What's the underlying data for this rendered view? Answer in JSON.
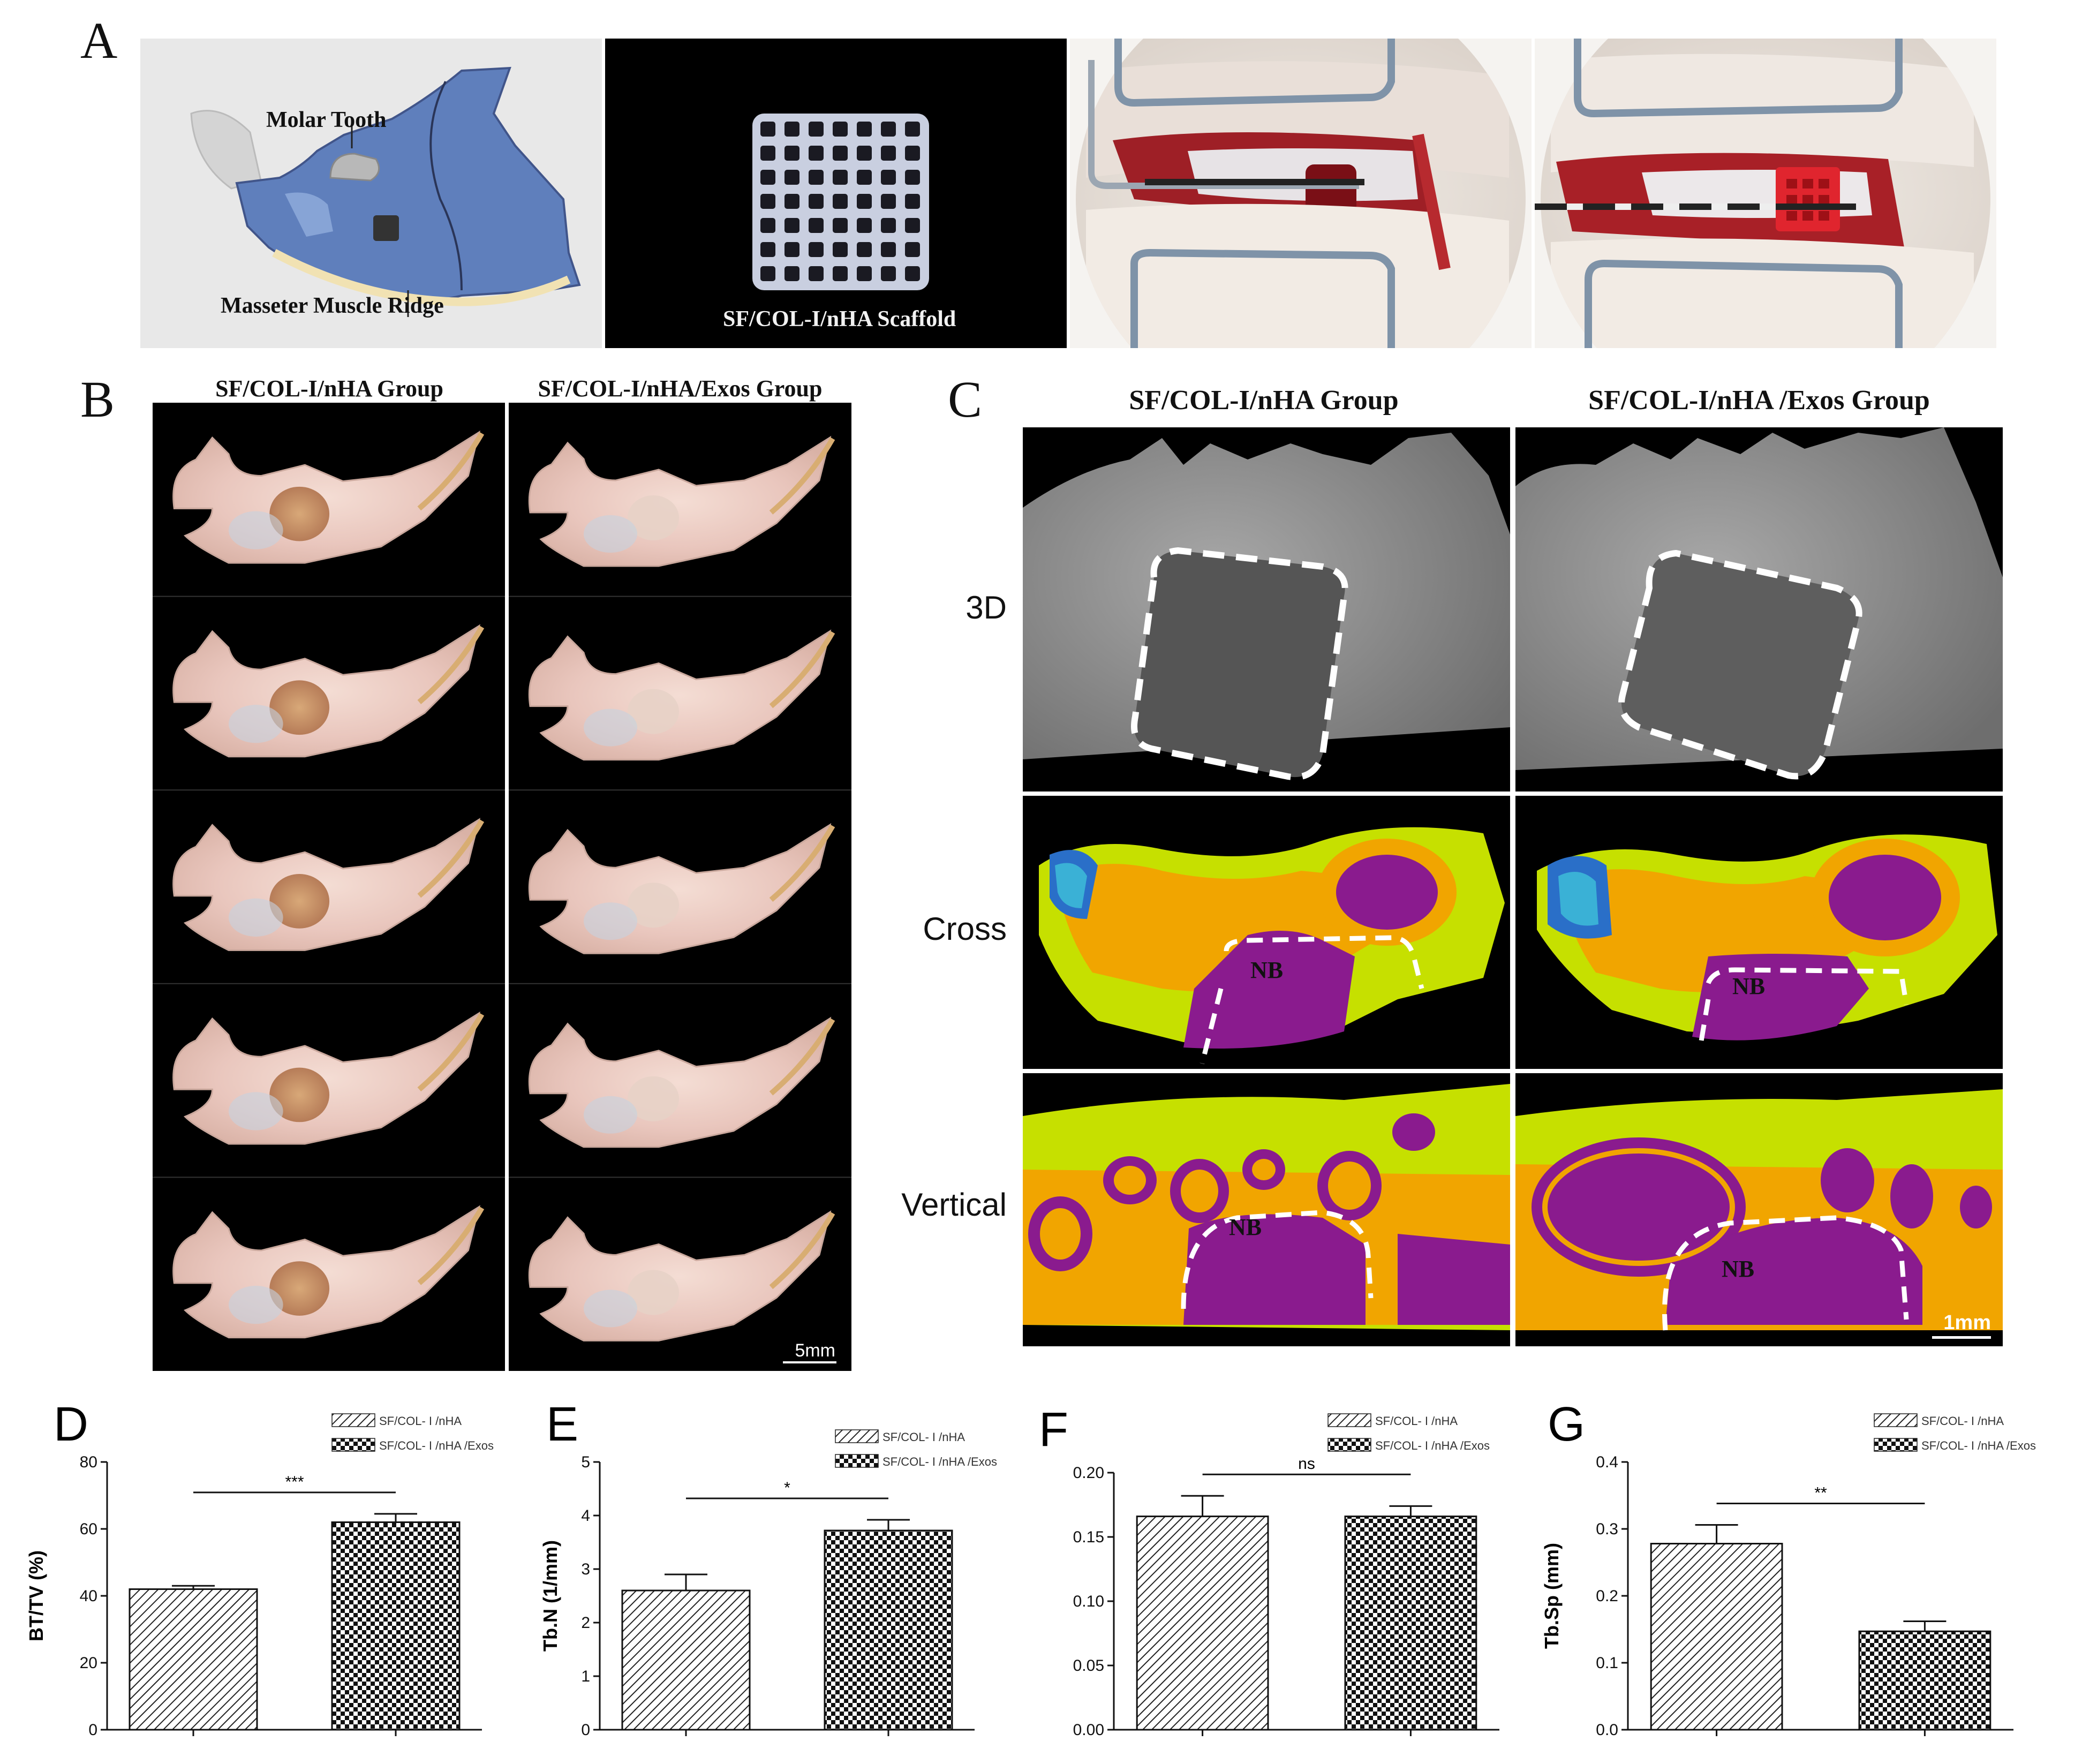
{
  "panels": {
    "A": {
      "letter": "A",
      "labels": {
        "molar_tooth": "Molar Tooth",
        "masseter": "Masseter Muscle Ridge",
        "scaffold": "SF/COL-I/nHA Scaffold"
      }
    },
    "B": {
      "letter": "B",
      "col1": "SF/COL-I/nHA Group",
      "col2": "SF/COL-I/nHA/Exos Group",
      "scale": "5mm"
    },
    "C": {
      "letter": "C",
      "col1": "SF/COL-I/nHA Group",
      "col2": "SF/COL-I/nHA /Exos Group",
      "rows": [
        "3D",
        "Cross",
        "Vertical"
      ],
      "nb": "NB",
      "scale": "1mm"
    }
  },
  "legend": {
    "g1": "SF/COL- I /nHA",
    "g2": "SF/COL- I /nHA /Exos"
  },
  "chart_data": [
    {
      "letter": "D",
      "type": "bar",
      "categories": [
        "SF/COL- I /nHA",
        "SF/COL- I /nHA /Exos"
      ],
      "values": [
        42,
        62
      ],
      "errors": [
        1,
        2.5
      ],
      "ylabel": "BT/TV (%)",
      "ylim": [
        0,
        80
      ],
      "yticks": [
        "0",
        "20",
        "40",
        "60",
        "80"
      ],
      "significance": "***"
    },
    {
      "letter": "E",
      "type": "bar",
      "categories": [
        "SF/COL- I /nHA",
        "SF/COL- I /nHA /Exos"
      ],
      "values": [
        2.6,
        3.72
      ],
      "errors": [
        0.3,
        0.2
      ],
      "ylabel": "Tb.N (1/mm)",
      "ylim": [
        0,
        5
      ],
      "yticks": [
        "0",
        "1",
        "2",
        "3",
        "4",
        "5"
      ],
      "significance": "*"
    },
    {
      "letter": "F",
      "type": "bar",
      "categories": [
        "SF/COL- I /nHA",
        "SF/COL- I /nHA /Exos"
      ],
      "values": [
        0.166,
        0.166
      ],
      "errors": [
        0.016,
        0.008
      ],
      "ylabel": "",
      "ylim": [
        0,
        0.2
      ],
      "yticks": [
        "0.00",
        "0.05",
        "0.10",
        "0.15",
        "0.20"
      ],
      "significance": "ns"
    },
    {
      "letter": "G",
      "type": "bar",
      "categories": [
        "SF/COL- I /nHA",
        "SF/COL- I /nHA /Exos"
      ],
      "values": [
        0.278,
        0.147
      ],
      "errors": [
        0.028,
        0.015
      ],
      "ylabel": "Tb.Sp (mm)",
      "ylim": [
        0,
        0.4
      ],
      "yticks": [
        "0.0",
        "0.1",
        "0.2",
        "0.3",
        "0.4"
      ],
      "significance": "**"
    }
  ]
}
